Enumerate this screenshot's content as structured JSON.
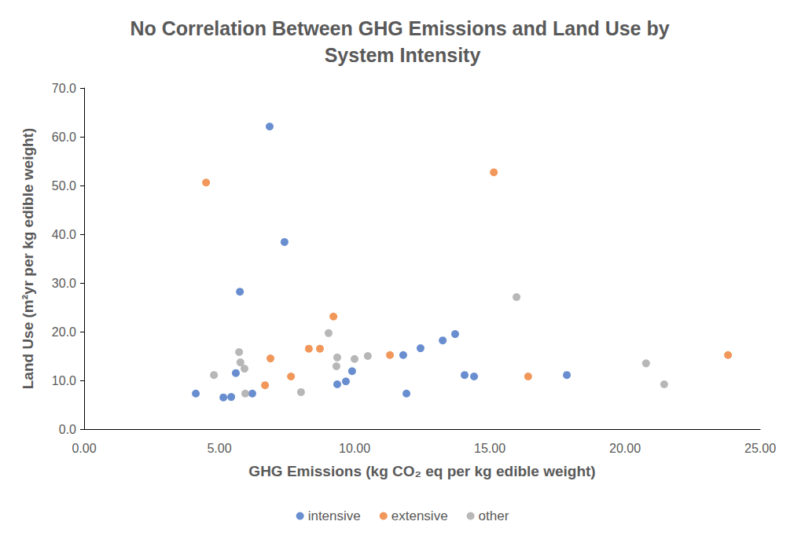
{
  "chart_data": {
    "type": "scatter",
    "title": "No Correlation Between GHG Emissions and Land Use by System Intensity",
    "x_label": "GHG Emissions (kg CO₂ eq per kg edible weight)",
    "y_label": "Land Use (m²yr per kg edible weight)",
    "xlim": [
      0,
      25
    ],
    "xticks": [
      {
        "value": 0,
        "label": "0.00"
      },
      {
        "value": 5,
        "label": "5.00"
      },
      {
        "value": 10,
        "label": "10.00"
      },
      {
        "value": 15,
        "label": "15.00"
      },
      {
        "value": 20,
        "label": "20.00"
      },
      {
        "value": 25,
        "label": "25.00"
      }
    ],
    "ylim": [
      0,
      70
    ],
    "yticks": [
      {
        "value": 0,
        "label": "0.0"
      },
      {
        "value": 10,
        "label": "10.0"
      },
      {
        "value": 20,
        "label": "20.0"
      },
      {
        "value": 30,
        "label": "30.0"
      },
      {
        "value": 40,
        "label": "40.0"
      },
      {
        "value": 50,
        "label": "50.0"
      },
      {
        "value": 60,
        "label": "60.0"
      },
      {
        "value": 70,
        "label": "70.0"
      }
    ],
    "grid": false,
    "legend": "bottom",
    "marker": "circle",
    "series": [
      {
        "name": "intensive",
        "color": "#4472C4",
        "x": [
          4.13,
          5.15,
          5.44,
          5.61,
          5.76,
          6.22,
          6.86,
          7.41,
          9.36,
          9.68,
          9.91,
          11.8,
          11.92,
          12.44,
          13.26,
          13.72,
          14.07,
          14.42,
          17.85
        ],
        "values": [
          7.3,
          6.5,
          6.6,
          11.5,
          28.2,
          7.3,
          62.1,
          38.4,
          9.2,
          9.8,
          11.9,
          15.2,
          7.3,
          16.6,
          18.2,
          19.5,
          11.1,
          10.8,
          11.1
        ]
      },
      {
        "name": "extensive",
        "color": "#ED7D31",
        "x": [
          4.51,
          6.69,
          6.89,
          7.65,
          8.31,
          8.72,
          9.22,
          11.31,
          15.15,
          16.42,
          23.81
        ],
        "values": [
          50.6,
          9.0,
          14.5,
          10.8,
          16.5,
          16.5,
          23.1,
          15.2,
          52.7,
          10.8,
          15.2
        ]
      },
      {
        "name": "other",
        "color": "#A5A5A5",
        "x": [
          4.8,
          5.73,
          5.78,
          5.93,
          5.96,
          8.02,
          9.04,
          9.33,
          9.36,
          10.0,
          10.49,
          15.99,
          20.78,
          21.45
        ],
        "values": [
          11.1,
          15.8,
          13.7,
          12.4,
          7.3,
          7.6,
          19.7,
          12.9,
          14.7,
          14.4,
          15.0,
          27.1,
          13.5,
          9.2
        ]
      }
    ]
  }
}
